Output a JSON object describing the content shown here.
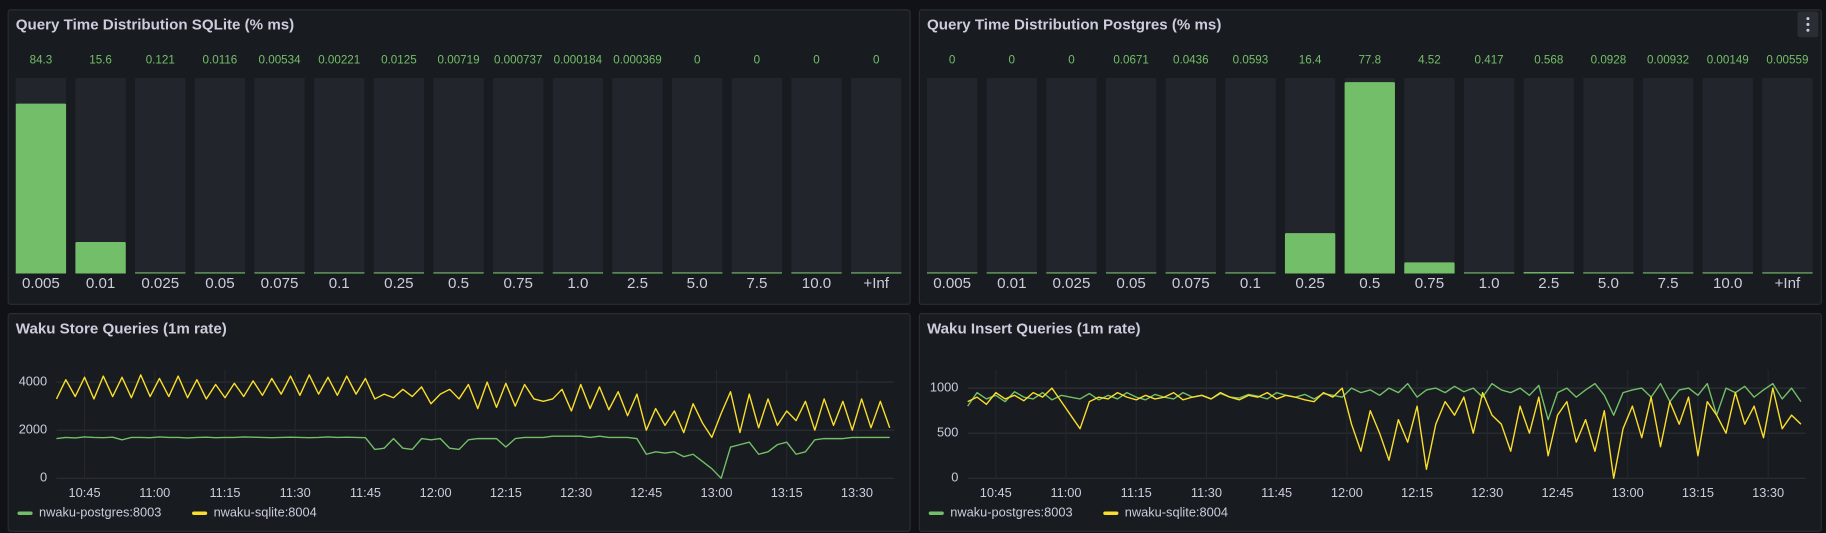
{
  "chart_data": [
    {
      "type": "bar",
      "title": "Query Time Distribution SQLite (% ms)",
      "color": "#73bf69",
      "categories": [
        "0.005",
        "0.01",
        "0.025",
        "0.05",
        "0.075",
        "0.1",
        "0.25",
        "0.5",
        "0.75",
        "1.0",
        "2.5",
        "5.0",
        "7.5",
        "10.0",
        "+Inf"
      ],
      "values": [
        84.3,
        15.6,
        0.121,
        0.0116,
        0.00534,
        0.00221,
        0.0125,
        0.00719,
        0.000737,
        0.000184,
        0.000369,
        0,
        0,
        0,
        0
      ],
      "ylim": [
        0,
        97
      ]
    },
    {
      "type": "bar",
      "title": "Query Time Distribution Postgres (% ms)",
      "color": "#73bf69",
      "categories": [
        "0.005",
        "0.01",
        "0.025",
        "0.05",
        "0.075",
        "0.1",
        "0.25",
        "0.5",
        "0.75",
        "1.0",
        "2.5",
        "5.0",
        "7.5",
        "10.0",
        "+Inf"
      ],
      "values": [
        0,
        0,
        0,
        0.0671,
        0.0436,
        0.0593,
        16.4,
        77.8,
        4.52,
        0.417,
        0.568,
        0.0928,
        0.00932,
        0.00149,
        0.00559
      ],
      "ylim": [
        0,
        79.5
      ]
    },
    {
      "type": "line",
      "title": "Waku Store Queries (1m rate)",
      "grid": true,
      "x": [
        "10:39",
        "10:41",
        "10:43",
        "10:45",
        "10:47",
        "10:49",
        "10:51",
        "10:53",
        "10:55",
        "10:57",
        "10:59",
        "11:01",
        "11:03",
        "11:05",
        "11:07",
        "11:09",
        "11:11",
        "11:13",
        "11:15",
        "11:17",
        "11:19",
        "11:21",
        "11:23",
        "11:25",
        "11:27",
        "11:29",
        "11:31",
        "11:33",
        "11:35",
        "11:37",
        "11:39",
        "11:41",
        "11:43",
        "11:45",
        "11:47",
        "11:49",
        "11:51",
        "11:53",
        "11:55",
        "11:57",
        "11:59",
        "12:01",
        "12:03",
        "12:05",
        "12:07",
        "12:09",
        "12:11",
        "12:13",
        "12:15",
        "12:17",
        "12:19",
        "12:21",
        "12:23",
        "12:25",
        "12:27",
        "12:29",
        "12:31",
        "12:33",
        "12:35",
        "12:37",
        "12:39",
        "12:41",
        "12:43",
        "12:45",
        "12:47",
        "12:49",
        "12:51",
        "12:53",
        "12:55",
        "12:57",
        "12:59",
        "13:01",
        "13:03",
        "13:05",
        "13:07",
        "13:09",
        "13:11",
        "13:13",
        "13:15",
        "13:17",
        "13:19",
        "13:21",
        "13:23",
        "13:25",
        "13:27",
        "13:29",
        "13:31",
        "13:33",
        "13:35",
        "13:37"
      ],
      "xlim": [
        "10:39",
        "13:38"
      ],
      "xticks": [
        "10:45",
        "11:00",
        "11:15",
        "11:30",
        "11:45",
        "12:00",
        "12:15",
        "12:30",
        "12:45",
        "13:00",
        "13:15",
        "13:30"
      ],
      "ylim": [
        0,
        4500
      ],
      "yticks": [
        0,
        2000,
        4000
      ],
      "series": [
        {
          "name": "nwaku-postgres:8003",
          "color": "#73bf69",
          "values": [
            1650,
            1700,
            1680,
            1720,
            1700,
            1690,
            1710,
            1600,
            1700,
            1700,
            1690,
            1720,
            1700,
            1700,
            1680,
            1700,
            1710,
            1690,
            1700,
            1700,
            1720,
            1710,
            1700,
            1690,
            1700,
            1710,
            1700,
            1690,
            1700,
            1720,
            1700,
            1710,
            1700,
            1690,
            1200,
            1250,
            1650,
            1250,
            1200,
            1650,
            1600,
            1650,
            1250,
            1200,
            1600,
            1650,
            1650,
            1650,
            1300,
            1650,
            1700,
            1700,
            1700,
            1750,
            1750,
            1750,
            1750,
            1700,
            1750,
            1700,
            1700,
            1700,
            1650,
            1000,
            1100,
            1050,
            1100,
            900,
            1000,
            700,
            400,
            0,
            1300,
            1400,
            1500,
            1000,
            1100,
            1400,
            1500,
            1000,
            1100,
            1600,
            1650,
            1650,
            1650,
            1700,
            1700,
            1700,
            1700,
            1700
          ]
        },
        {
          "name": "nwaku-sqlite:8004",
          "color": "#fade2a",
          "values": [
            3300,
            4100,
            3400,
            4200,
            3300,
            4250,
            3400,
            4200,
            3350,
            4300,
            3400,
            4150,
            3400,
            4250,
            3350,
            4100,
            3300,
            3900,
            3350,
            3950,
            3400,
            4050,
            3450,
            4150,
            3500,
            4250,
            3450,
            4300,
            3500,
            4200,
            3450,
            4250,
            3500,
            4150,
            3300,
            3500,
            3350,
            3700,
            3400,
            3800,
            3100,
            3500,
            3700,
            3300,
            3900,
            2900,
            4000,
            2950,
            3950,
            3000,
            3900,
            3300,
            3200,
            3300,
            3700,
            2800,
            3900,
            2900,
            3800,
            2850,
            3600,
            2600,
            3500,
            2000,
            2900,
            2200,
            2800,
            1900,
            3100,
            2300,
            1700,
            2700,
            3600,
            1900,
            3500,
            2100,
            3300,
            2200,
            2800,
            2400,
            3200,
            2000,
            3300,
            2200,
            3200,
            2000,
            3300,
            2100,
            3200,
            2100
          ]
        }
      ]
    },
    {
      "type": "line",
      "title": "Waku Insert Queries (1m rate)",
      "grid": true,
      "x": [
        "10:39",
        "10:41",
        "10:43",
        "10:45",
        "10:47",
        "10:49",
        "10:51",
        "10:53",
        "10:55",
        "10:57",
        "10:59",
        "11:01",
        "11:03",
        "11:05",
        "11:07",
        "11:09",
        "11:11",
        "11:13",
        "11:15",
        "11:17",
        "11:19",
        "11:21",
        "11:23",
        "11:25",
        "11:27",
        "11:29",
        "11:31",
        "11:33",
        "11:35",
        "11:37",
        "11:39",
        "11:41",
        "11:43",
        "11:45",
        "11:47",
        "11:49",
        "11:51",
        "11:53",
        "11:55",
        "11:57",
        "11:59",
        "12:01",
        "12:03",
        "12:05",
        "12:07",
        "12:09",
        "12:11",
        "12:13",
        "12:15",
        "12:17",
        "12:19",
        "12:21",
        "12:23",
        "12:25",
        "12:27",
        "12:29",
        "12:31",
        "12:33",
        "12:35",
        "12:37",
        "12:39",
        "12:41",
        "12:43",
        "12:45",
        "12:47",
        "12:49",
        "12:51",
        "12:53",
        "12:55",
        "12:57",
        "12:59",
        "13:01",
        "13:03",
        "13:05",
        "13:07",
        "13:09",
        "13:11",
        "13:13",
        "13:15",
        "13:17",
        "13:19",
        "13:21",
        "13:23",
        "13:25",
        "13:27",
        "13:29",
        "13:31",
        "13:33",
        "13:35",
        "13:37"
      ],
      "xlim": [
        "10:39",
        "13:38"
      ],
      "xticks": [
        "10:45",
        "11:00",
        "11:15",
        "11:30",
        "11:45",
        "12:00",
        "12:15",
        "12:30",
        "12:45",
        "13:00",
        "13:15",
        "13:30"
      ],
      "ylim": [
        0,
        1200
      ],
      "yticks": [
        0,
        500,
        1000
      ],
      "series": [
        {
          "name": "nwaku-postgres:8003",
          "color": "#73bf69",
          "values": [
            800,
            950,
            880,
            920,
            850,
            960,
            900,
            880,
            950,
            870,
            920,
            900,
            880,
            940,
            870,
            920,
            880,
            950,
            900,
            870,
            930,
            900,
            880,
            950,
            900,
            920,
            880,
            940,
            900,
            890,
            930,
            910,
            880,
            950,
            920,
            900,
            930,
            880,
            940,
            920,
            900,
            1000,
            950,
            980,
            920,
            1000,
            950,
            1050,
            900,
            980,
            1000,
            950,
            1020,
            960,
            1000,
            900,
            1050,
            980,
            950,
            1000,
            920,
            1030,
            650,
            950,
            1000,
            900,
            980,
            1050,
            920,
            700,
            950,
            980,
            1000,
            900,
            1050,
            850,
            980,
            1000,
            920,
            1050,
            700,
            1000,
            950,
            1020,
            900,
            980,
            1050,
            880,
            1000,
            850
          ]
        },
        {
          "name": "nwaku-sqlite:8004",
          "color": "#fade2a",
          "values": [
            850,
            900,
            820,
            950,
            880,
            920,
            860,
            950,
            900,
            1000,
            850,
            700,
            550,
            850,
            900,
            880,
            950,
            900,
            870,
            920,
            880,
            900,
            950,
            870,
            900,
            920,
            880,
            950,
            900,
            870,
            920,
            900,
            950,
            880,
            920,
            900,
            870,
            850,
            950,
            900,
            1000,
            600,
            300,
            750,
            500,
            200,
            650,
            400,
            800,
            100,
            600,
            850,
            700,
            900,
            500,
            950,
            700,
            600,
            300,
            800,
            500,
            900,
            250,
            700,
            850,
            400,
            650,
            300,
            750,
            0,
            550,
            800,
            450,
            900,
            350,
            850,
            600,
            900,
            250,
            850,
            700,
            500,
            950,
            600,
            800,
            450,
            1000,
            550,
            700,
            600
          ]
        }
      ]
    }
  ]
}
